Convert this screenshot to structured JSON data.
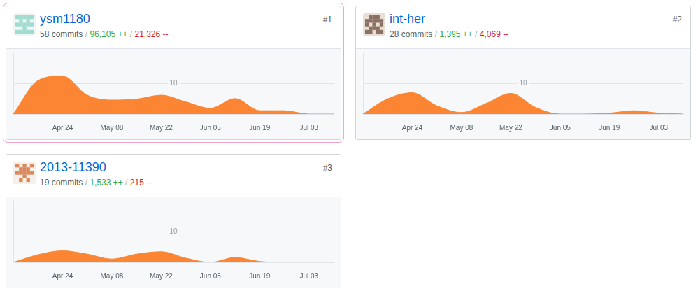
{
  "chart_data": [
    {
      "type": "area",
      "title": "ysm1180",
      "rank": "#1",
      "separator": " / ",
      "stats": [
        "58 commits",
        "96,105 ++",
        "21,326 --"
      ],
      "categories": [
        null,
        null,
        "Apr 24",
        null,
        "May 08",
        null,
        "May 22",
        null,
        "Jun 05",
        null,
        "Jun 19",
        null,
        "Jul 03",
        null
      ],
      "values": [
        0,
        11,
        12.5,
        6.2,
        4.6,
        4.9,
        6.2,
        4,
        1.9,
        5.1,
        1.1,
        1.1,
        0,
        0
      ],
      "color": "#fb8532",
      "ylim": [
        0,
        20
      ],
      "yticks": [
        10
      ],
      "grid": true
    },
    {
      "type": "area",
      "title": "int-her",
      "rank": "#2",
      "separator": " / ",
      "stats": [
        "28 commits",
        "1,395 ++",
        "4,069 --"
      ],
      "categories": [
        null,
        null,
        "Apr 24",
        null,
        "May 08",
        null,
        "May 22",
        null,
        "Jun 05",
        null,
        "Jun 19",
        null,
        "Jul 03",
        null
      ],
      "values": [
        0,
        5,
        7,
        2.7,
        0.5,
        3.5,
        6.8,
        2.2,
        0,
        0,
        0.3,
        1.1,
        0.3,
        0
      ],
      "color": "#fb8532",
      "ylim": [
        0,
        20
      ],
      "yticks": [
        10
      ],
      "grid": true
    },
    {
      "type": "area",
      "title": "2013-11390",
      "rank": "#3",
      "separator": " / ",
      "stats": [
        "19 commits",
        "1,533 ++",
        "215 --"
      ],
      "categories": [
        null,
        null,
        "Apr 24",
        null,
        "May 08",
        null,
        "May 22",
        null,
        "Jun 05",
        null,
        "Jun 19",
        null,
        "Jul 03",
        null
      ],
      "values": [
        0,
        2.5,
        3.8,
        2.7,
        1.1,
        2.7,
        3.5,
        1.4,
        0,
        1.6,
        0.3,
        0,
        0,
        0
      ],
      "color": "#fb8532",
      "ylim": [
        0,
        20
      ],
      "yticks": [
        10
      ],
      "grid": true
    }
  ]
}
